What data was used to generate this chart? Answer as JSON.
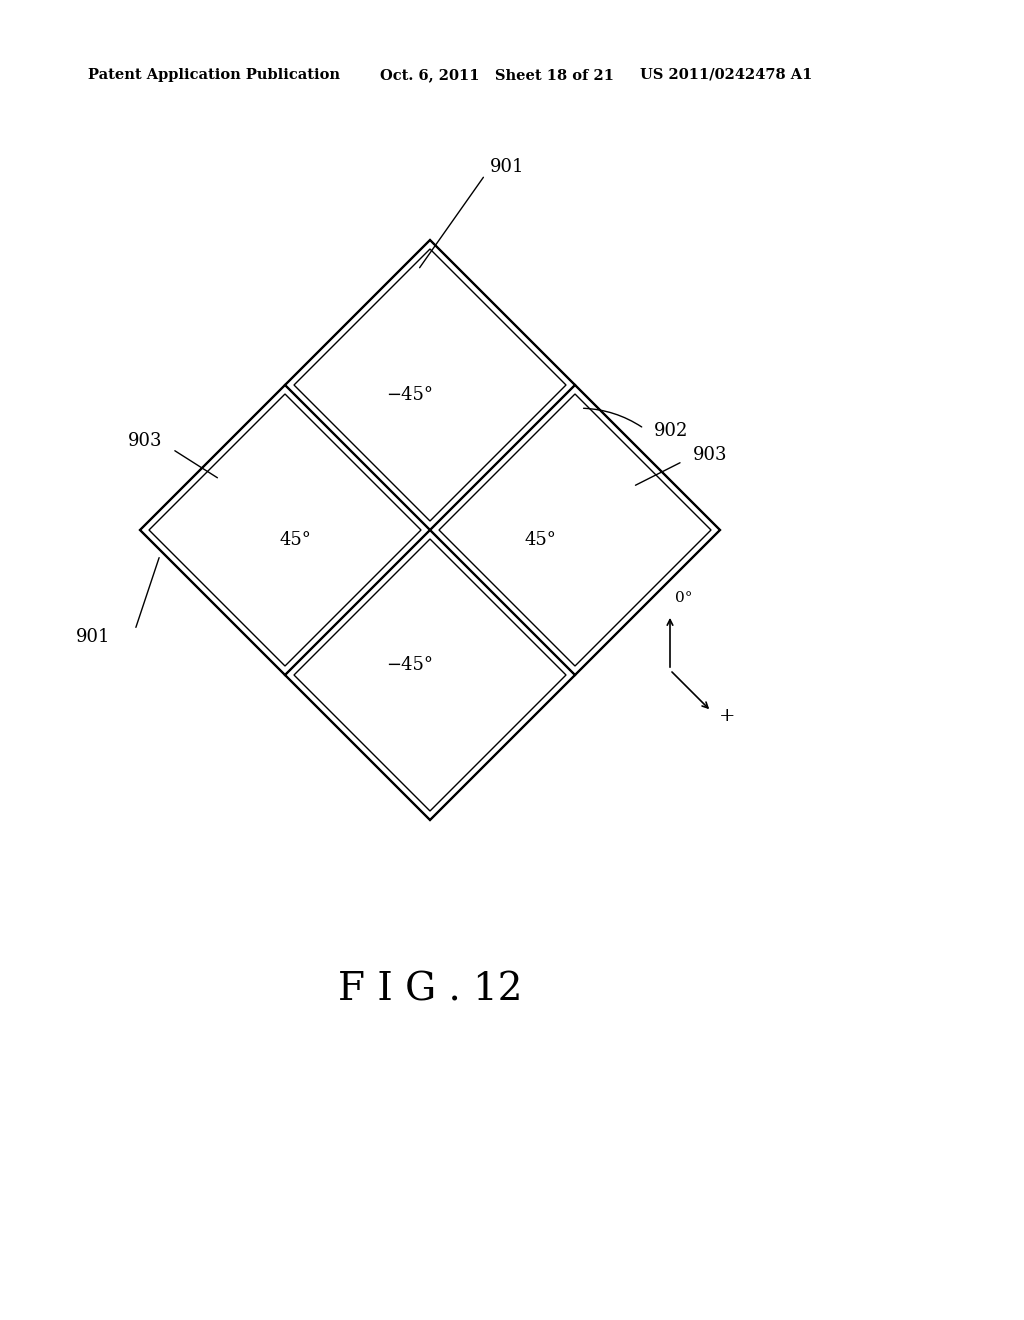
{
  "background_color": "#ffffff",
  "header_left": "Patent Application Publication",
  "header_center": "Oct. 6, 2011   Sheet 18 of 21",
  "header_right": "US 2011/0242478 A1",
  "figure_label": "F I G . 12",
  "label_901_top": "901",
  "label_901_bot": "901",
  "label_902": "902",
  "label_903_left": "903",
  "label_903_right": "903",
  "text_top": "−45°",
  "text_bot": "−45°",
  "text_left": "45°",
  "text_right": "45°",
  "compass_label_0": "0°",
  "compass_label_plus": "+",
  "line_color": "#000000",
  "text_color": "#000000"
}
